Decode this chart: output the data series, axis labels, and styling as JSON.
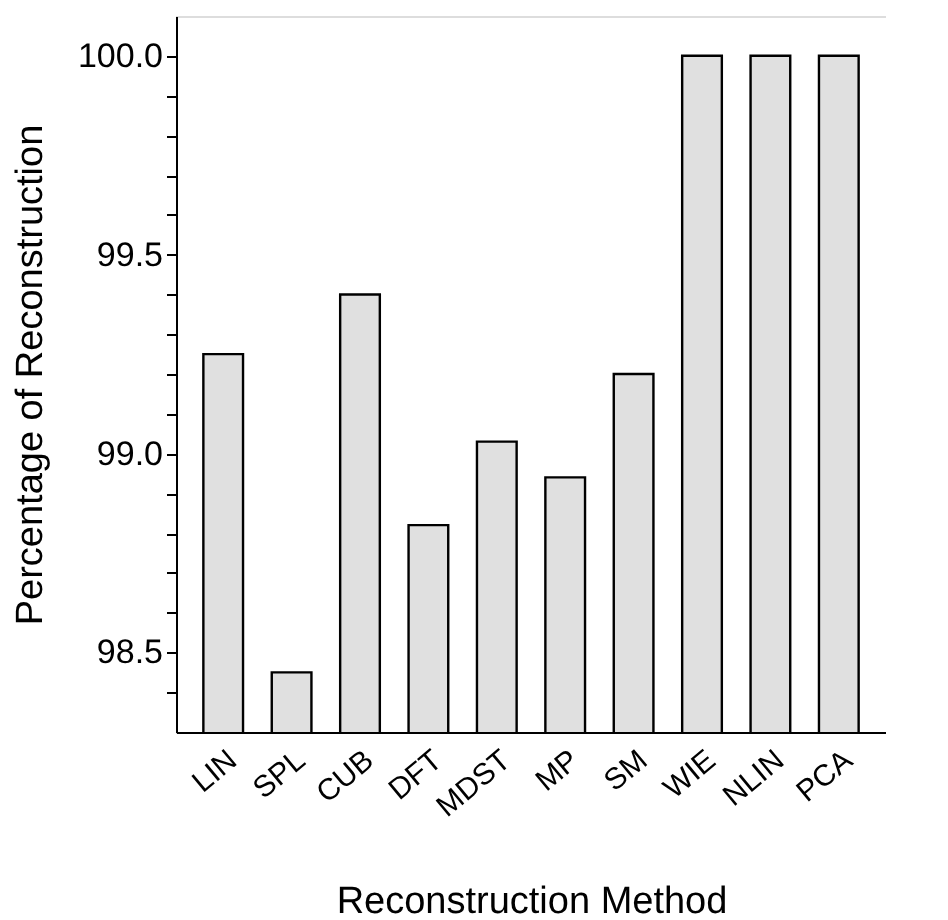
{
  "chart_data": {
    "type": "bar",
    "xlabel": "Reconstruction Method",
    "ylabel": "Percentage of Reconstruction",
    "categories": [
      "LIN",
      "SPL",
      "CUB",
      "DFT",
      "MDST",
      "MP",
      "SM",
      "WIE",
      "NLIN",
      "PCA"
    ],
    "values": [
      99.25,
      98.45,
      99.4,
      98.82,
      99.03,
      98.94,
      99.2,
      100.0,
      100.0,
      100.0
    ],
    "color": "#e0e0e0",
    "ylim": [
      98.3,
      100.1
    ],
    "yticks": [
      {
        "value": 98.4,
        "label": null
      },
      98.5,
      {
        "value": 98.6,
        "label": null
      },
      {
        "value": 98.7,
        "label": null
      },
      {
        "value": 98.8,
        "label": null
      },
      {
        "value": 98.9,
        "label": null
      },
      {
        "value": 99,
        "label": "99.0"
      },
      {
        "value": 99.1,
        "label": null
      },
      {
        "value": 99.2,
        "label": null
      },
      {
        "value": 99.3,
        "label": null
      },
      {
        "value": 99.4,
        "label": null
      },
      99.5,
      {
        "value": 99.6,
        "label": null
      },
      {
        "value": 99.7,
        "label": null
      },
      {
        "value": 99.8,
        "label": null
      },
      {
        "value": 99.9,
        "label": null
      },
      {
        "value": 100,
        "label": "100.0"
      }
    ],
    "grid": false
  }
}
